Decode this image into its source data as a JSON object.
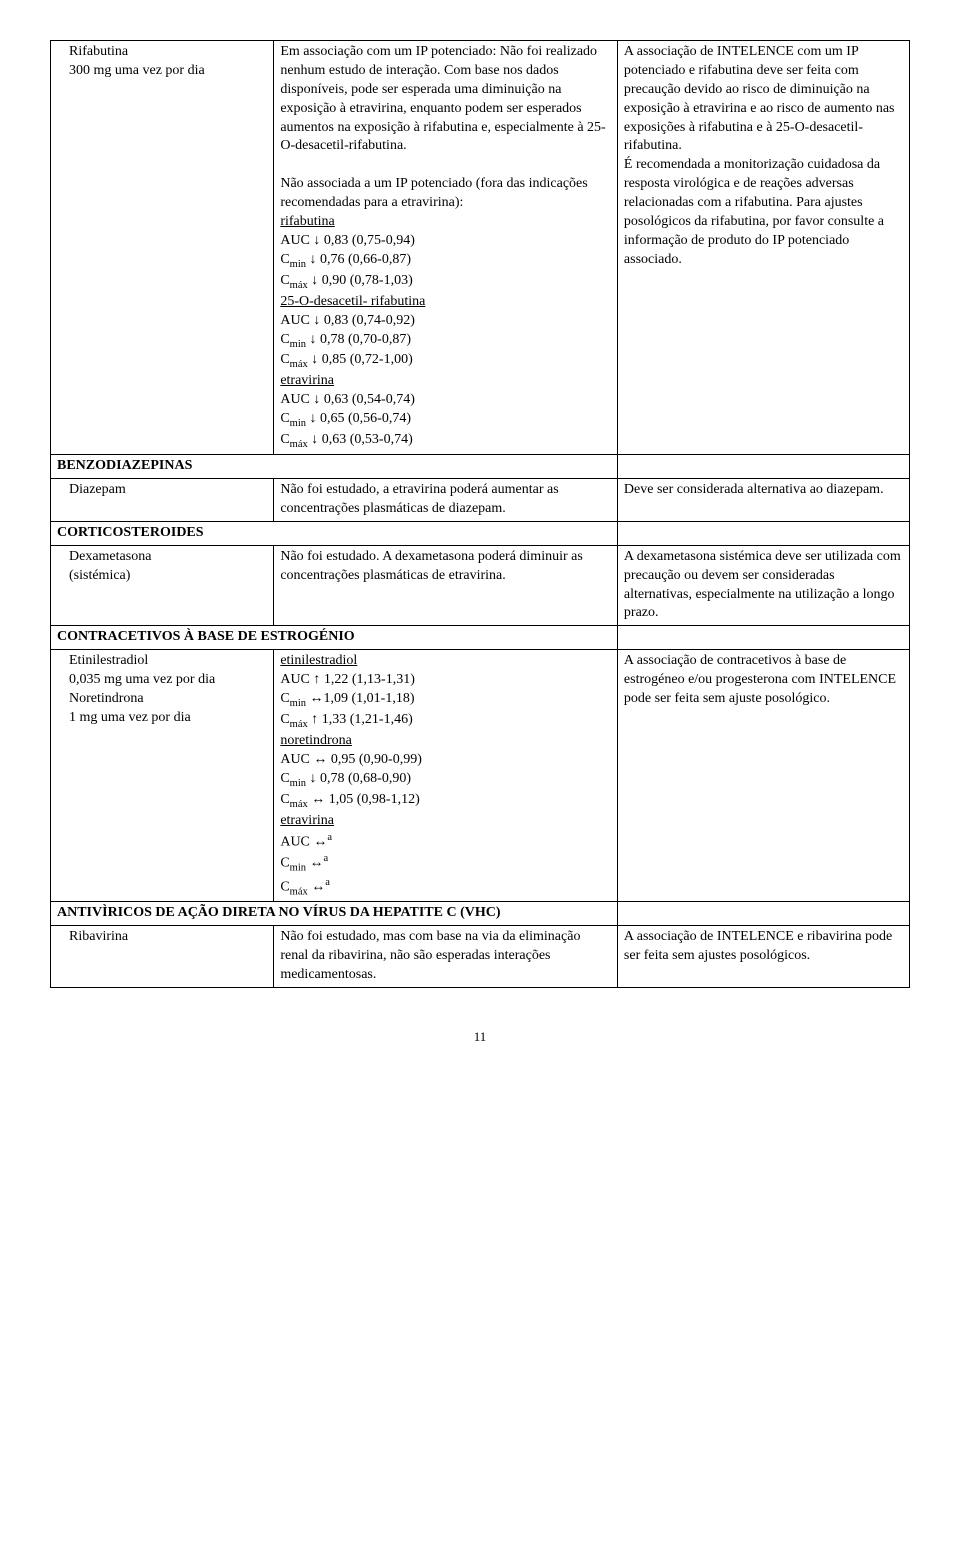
{
  "page_number": "11",
  "rows": [
    {
      "type": "data",
      "col1_lines": [
        "Rifabutina",
        "300 mg uma vez por dia"
      ],
      "col2_html": "Em associação com um IP potenciado: Não foi realizado nenhum estudo de interação. Com base nos dados disponíveis, pode ser esperada uma diminuição na exposição à etravirina, enquanto podem ser esperados aumentos na exposição à rifabutina e, especialmente à 25-O-desacetil-rifabutina.<br><br>Não associada a um IP potenciado (fora das indicações recomendadas para a etravirina):<br><span class='u'>rifabutina</span><br>AUC ↓ 0,83 (0,75-0,94)<br>C<span class='sub'>min</span> ↓ 0,76 (0,66-0,87)<br>C<span class='sub'>máx</span> ↓ 0,90 (0,78-1,03)<br><span class='u'>25-O-desacetil- rifabutina</span><br>AUC ↓ 0,83 (0,74-0,92)<br>C<span class='sub'>min</span> ↓ 0,78 (0,70-0,87)<br>C<span class='sub'>máx</span> ↓ 0,85 (0,72-1,00)<br><span class='u'>etravirina</span><br>AUC ↓ 0,63 (0,54-0,74)<br>C<span class='sub'>min</span> ↓ 0,65 (0,56-0,74)<br>C<span class='sub'>máx</span> ↓ 0,63 (0,53-0,74)",
      "col3_html": "A associação de INTELENCE com um IP potenciado e rifabutina deve ser feita com precaução devido ao risco de diminuição na exposição à etravirina e ao risco de aumento nas exposições à rifabutina e à 25-O-desacetil-rifabutina.<br>É recomendada a monitorização cuidadosa da resposta virológica e de reações adversas relacionadas com a rifabutina. Para ajustes posológicos da rifabutina, por favor consulte a informação de produto do IP potenciado associado."
    },
    {
      "type": "section",
      "label": "BENZODIAZEPINAS"
    },
    {
      "type": "data",
      "col1_lines": [
        "Diazepam"
      ],
      "col2_html": "Não foi estudado, a etravirina poderá aumentar as concentrações plasmáticas de diazepam.",
      "col3_html": "Deve ser considerada alternativa ao diazepam."
    },
    {
      "type": "section",
      "label": "CORTICOSTEROIDES"
    },
    {
      "type": "data",
      "col1_lines": [
        "Dexametasona",
        "(sistémica)"
      ],
      "col2_html": "Não foi estudado. A dexametasona poderá diminuir as concentrações plasmáticas de etravirina.",
      "col3_html": "A dexametasona sistémica deve ser utilizada com precaução ou devem ser consideradas alternativas, especialmente na utilização a longo prazo."
    },
    {
      "type": "section",
      "label": "CONTRACETIVOS À BASE DE ESTROGÉNIO"
    },
    {
      "type": "data",
      "col1_lines": [
        "Etinilestradiol",
        "0,035 mg uma vez por dia",
        "Noretindrona",
        "1 mg uma vez por dia"
      ],
      "col2_html": "<span class='u'>etinilestradiol</span><br>AUC ↑ 1,22 (1,13-1,31)<br>C<span class='sub'>min</span> ↔1,09 (1,01-1,18)<br>C<span class='sub'>máx</span> ↑ 1,33 (1,21-1,46)<br><span class='u'>noretindrona</span><br>AUC ↔ 0,95 (0,90-0,99)<br>C<span class='sub'>min</span> ↓ 0,78 (0,68-0,90)<br>C<span class='sub'>máx</span> ↔ 1,05 (0,98-1,12)<br><span class='u'>etravirina</span><br>AUC ↔<span class='sup'>a</span><br>C<span class='sub'>min</span> ↔<span class='sup'>a</span><br>C<span class='sub'>máx</span> ↔<span class='sup'>a</span>",
      "col3_html": "A associação de contracetivos à base de estrogéneo e/ou progesterona com INTELENCE pode ser feita sem ajuste posológico."
    },
    {
      "type": "section",
      "label": "ANTIVÌRICOS DE AÇÃO DIRETA NO VÍRUS DA HEPATITE C (VHC)"
    },
    {
      "type": "data",
      "col1_lines": [
        "Ribavirina"
      ],
      "col2_html": "Não foi estudado, mas com base na via da eliminação renal da ribavirina, não são esperadas interações medicamentosas.",
      "col3_html": "A associação de INTELENCE e ribavirina pode ser feita sem ajustes posológicos."
    }
  ]
}
